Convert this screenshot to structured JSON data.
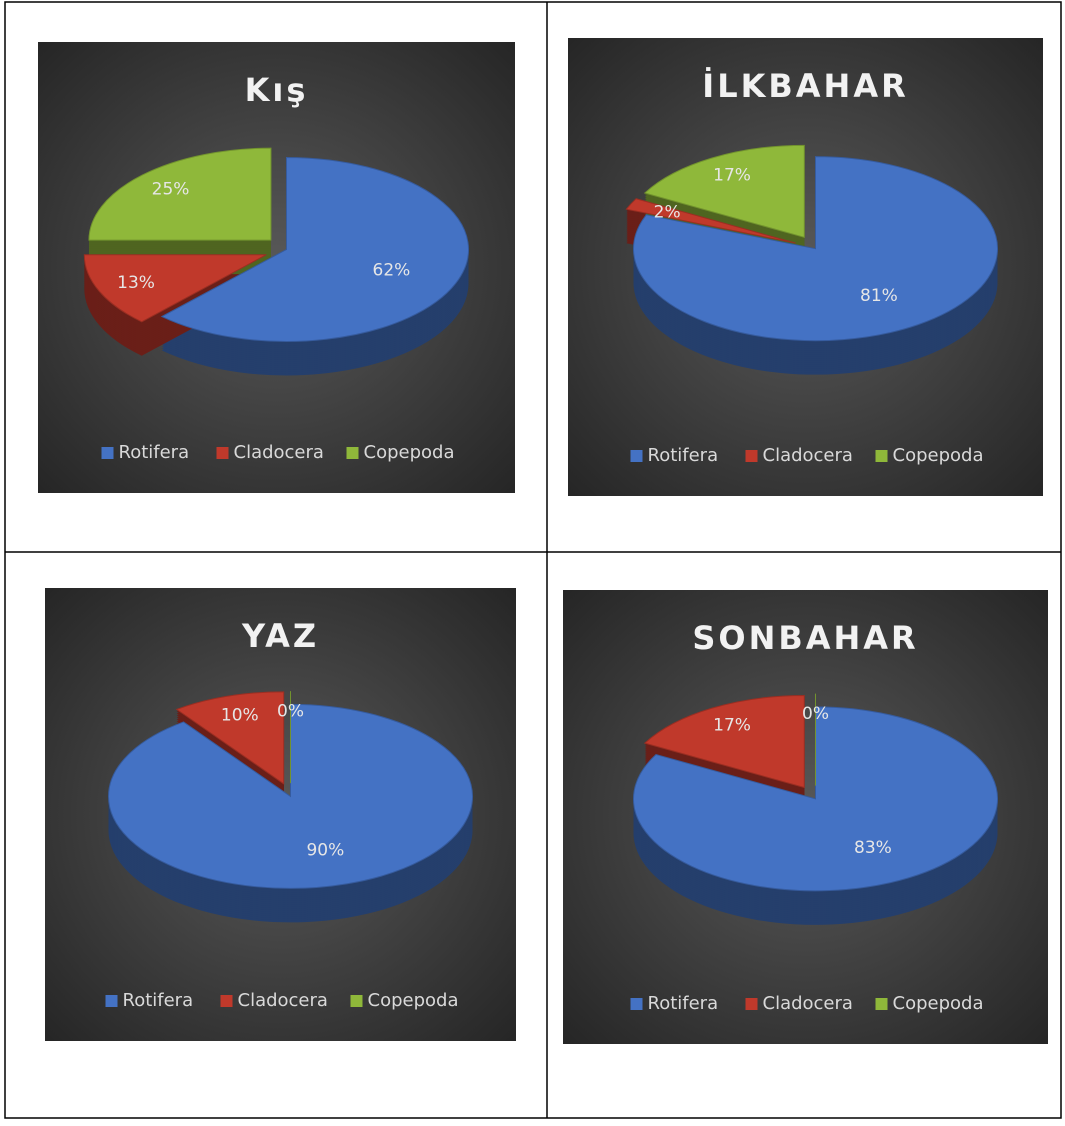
{
  "chart_data": [
    {
      "type": "pie",
      "title": "Kış",
      "categories": [
        "Rotifera",
        "Cladocera",
        "Copepoda"
      ],
      "values": [
        62,
        13,
        25
      ],
      "value_labels": [
        "62%",
        "13%",
        "25%"
      ],
      "colors": [
        "#4472c4",
        "#c0392b",
        "#8fb83a"
      ]
    },
    {
      "type": "pie",
      "title": "İLKBAHAR",
      "categories": [
        "Rotifera",
        "Cladocera",
        "Copepoda"
      ],
      "values": [
        81,
        2,
        17
      ],
      "value_labels": [
        "81%",
        "2%",
        "17%"
      ],
      "colors": [
        "#4472c4",
        "#c0392b",
        "#8fb83a"
      ]
    },
    {
      "type": "pie",
      "title": "YAZ",
      "categories": [
        "Rotifera",
        "Cladocera",
        "Copepoda"
      ],
      "values": [
        90,
        10,
        0
      ],
      "value_labels": [
        "90%",
        "10%",
        "0%"
      ],
      "colors": [
        "#4472c4",
        "#c0392b",
        "#8fb83a"
      ]
    },
    {
      "type": "pie",
      "title": "SONBAHAR",
      "categories": [
        "Rotifera",
        "Cladocera",
        "Copepoda"
      ],
      "values": [
        83,
        17,
        0
      ],
      "value_labels": [
        "83%",
        "17%",
        "0%"
      ],
      "colors": [
        "#4472c4",
        "#c0392b",
        "#8fb83a"
      ]
    }
  ]
}
